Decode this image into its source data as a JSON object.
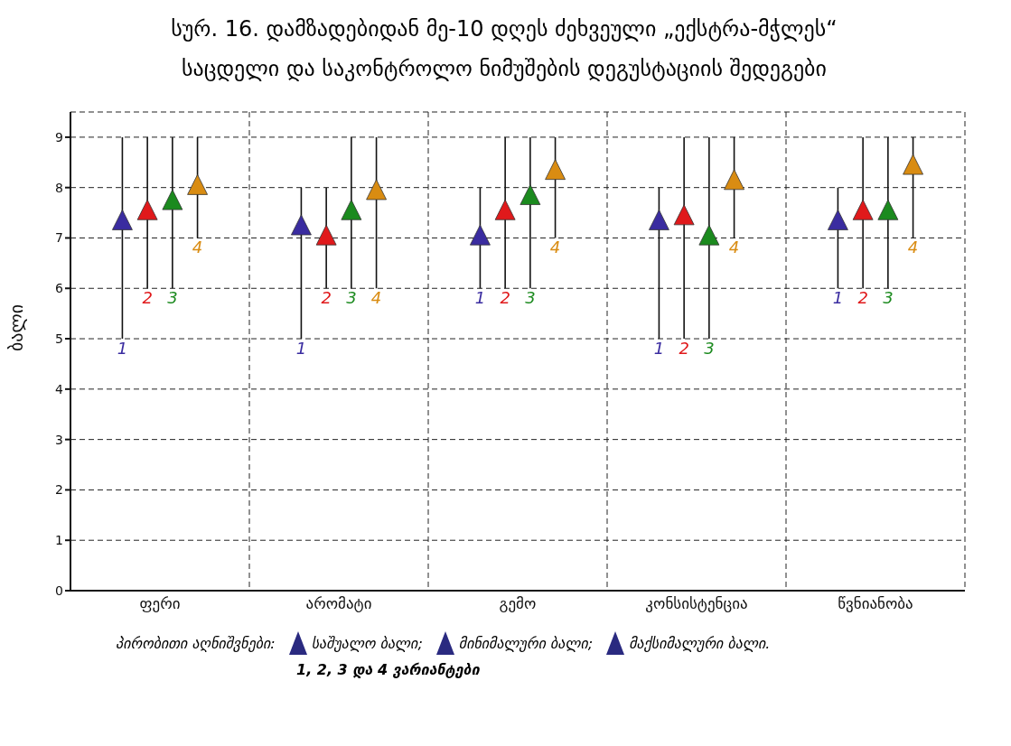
{
  "chart_data": {
    "type": "scatter",
    "title": "სურ. 16. დამზადებიდან მე-10 დღეს ძეხვეული „ექსტრა-მჭლეს“ საცდელი და საკონტროლო ნიმუშების დეგუსტაციის შედეგები",
    "ylabel": "ბალი",
    "categories": [
      "ფერი",
      "არომატი",
      "გემო",
      "კონსისტენცია",
      "წვნიანობა"
    ],
    "series": [
      {
        "name": "1",
        "color": "#3a2ca0",
        "values": [
          7.3,
          7.2,
          7.0,
          7.3,
          7.3
        ],
        "errors": [
          [
            5,
            9
          ],
          [
            5,
            8
          ],
          [
            6,
            8
          ],
          [
            5,
            8
          ],
          [
            6,
            8
          ]
        ]
      },
      {
        "name": "2",
        "color": "#e0191b",
        "values": [
          7.5,
          7.0,
          7.5,
          7.4,
          7.5
        ],
        "errors": [
          [
            6,
            9
          ],
          [
            6,
            8
          ],
          [
            6,
            9
          ],
          [
            5,
            9
          ],
          [
            6,
            9
          ]
        ]
      },
      {
        "name": "3",
        "color": "#1b8a1e",
        "values": [
          7.7,
          7.5,
          7.8,
          7.0,
          7.5
        ],
        "errors": [
          [
            6,
            9
          ],
          [
            6,
            9
          ],
          [
            6,
            9
          ],
          [
            5,
            9
          ],
          [
            6,
            9
          ]
        ]
      },
      {
        "name": "4",
        "color": "#d98c12",
        "values": [
          8.0,
          7.9,
          8.3,
          8.1,
          8.4
        ],
        "errors": [
          [
            7,
            9
          ],
          [
            6,
            9
          ],
          [
            7,
            9
          ],
          [
            7,
            9
          ],
          [
            7,
            9
          ]
        ]
      }
    ],
    "ylim": [
      0,
      9.5
    ],
    "yticks": [
      0,
      1,
      2,
      3,
      4,
      5,
      6,
      7,
      8,
      9
    ],
    "grid": true,
    "marker": "triangle",
    "legend": false,
    "annotations": [
      "პირობითი აღნიშვნები:",
      "საშუალო ბალი;",
      "მინიმალური ბალი;",
      "მაქსიმალური ბალი.",
      "1, 2, 3 და 4 ვარიანტები"
    ]
  }
}
